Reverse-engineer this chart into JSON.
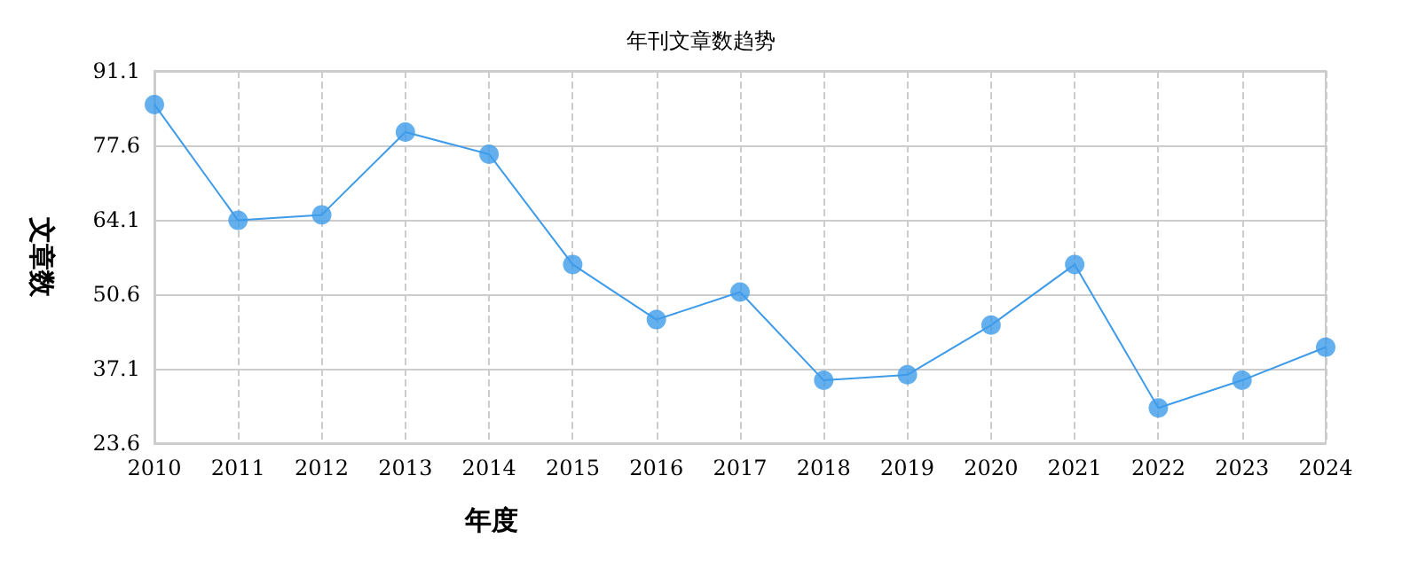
{
  "chart_data": {
    "type": "line",
    "title": "年刊文章数趋势",
    "xlabel": "年度",
    "ylabel": "文章数",
    "categories": [
      "2010",
      "2011",
      "2012",
      "2013",
      "2014",
      "2015",
      "2016",
      "2017",
      "2018",
      "2019",
      "2020",
      "2021",
      "2022",
      "2023",
      "2024"
    ],
    "series": [
      {
        "color": "#3d9be9",
        "values": [
          85,
          64,
          65,
          80,
          76,
          56,
          46,
          51,
          35,
          36,
          45,
          56,
          30,
          35,
          41
        ]
      }
    ],
    "ylim": [
      23.6,
      91.1
    ],
    "yticks": [
      23.6,
      37.1,
      50.6,
      64.1,
      77.6,
      91.1
    ],
    "grid": true,
    "marker": "circle",
    "line_style": "solid"
  }
}
